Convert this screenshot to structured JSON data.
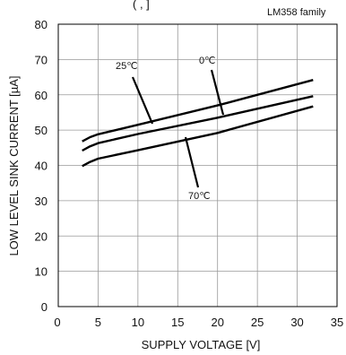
{
  "chart_data": {
    "type": "line",
    "title": "",
    "family_label": "LM358  family",
    "top_cutoff_text": "(         ,   ]",
    "xlabel": "SUPPLY VOLTAGE [V]",
    "ylabel": "LOW LEVEL SINK CURRENT [µA]",
    "xlim": [
      0,
      35
    ],
    "ylim": [
      0,
      80
    ],
    "x_ticks": [
      "0",
      "5",
      "10",
      "15",
      "20",
      "25",
      "30",
      "35"
    ],
    "y_ticks": [
      "0",
      "10",
      "20",
      "30",
      "40",
      "50",
      "60",
      "70",
      "80"
    ],
    "grid": true,
    "series": [
      {
        "name": "25℃",
        "x": [
          3,
          4,
          5,
          10,
          20,
          32
        ],
        "y": [
          46.8,
          48.0,
          48.8,
          51.5,
          57.0,
          64.2
        ]
      },
      {
        "name": "0℃",
        "x": [
          3,
          4,
          5,
          10,
          20,
          32
        ],
        "y": [
          44.2,
          45.4,
          46.3,
          48.9,
          53.5,
          59.6
        ]
      },
      {
        "name": "70℃",
        "x": [
          3,
          4,
          5,
          10,
          20,
          32
        ],
        "y": [
          39.8,
          41.0,
          41.9,
          44.3,
          49.2,
          56.7
        ]
      }
    ],
    "annotations": [
      {
        "text": "25℃",
        "series": 0
      },
      {
        "text": "0℃",
        "series": 1
      },
      {
        "text": "70℃",
        "series": 2
      }
    ]
  }
}
